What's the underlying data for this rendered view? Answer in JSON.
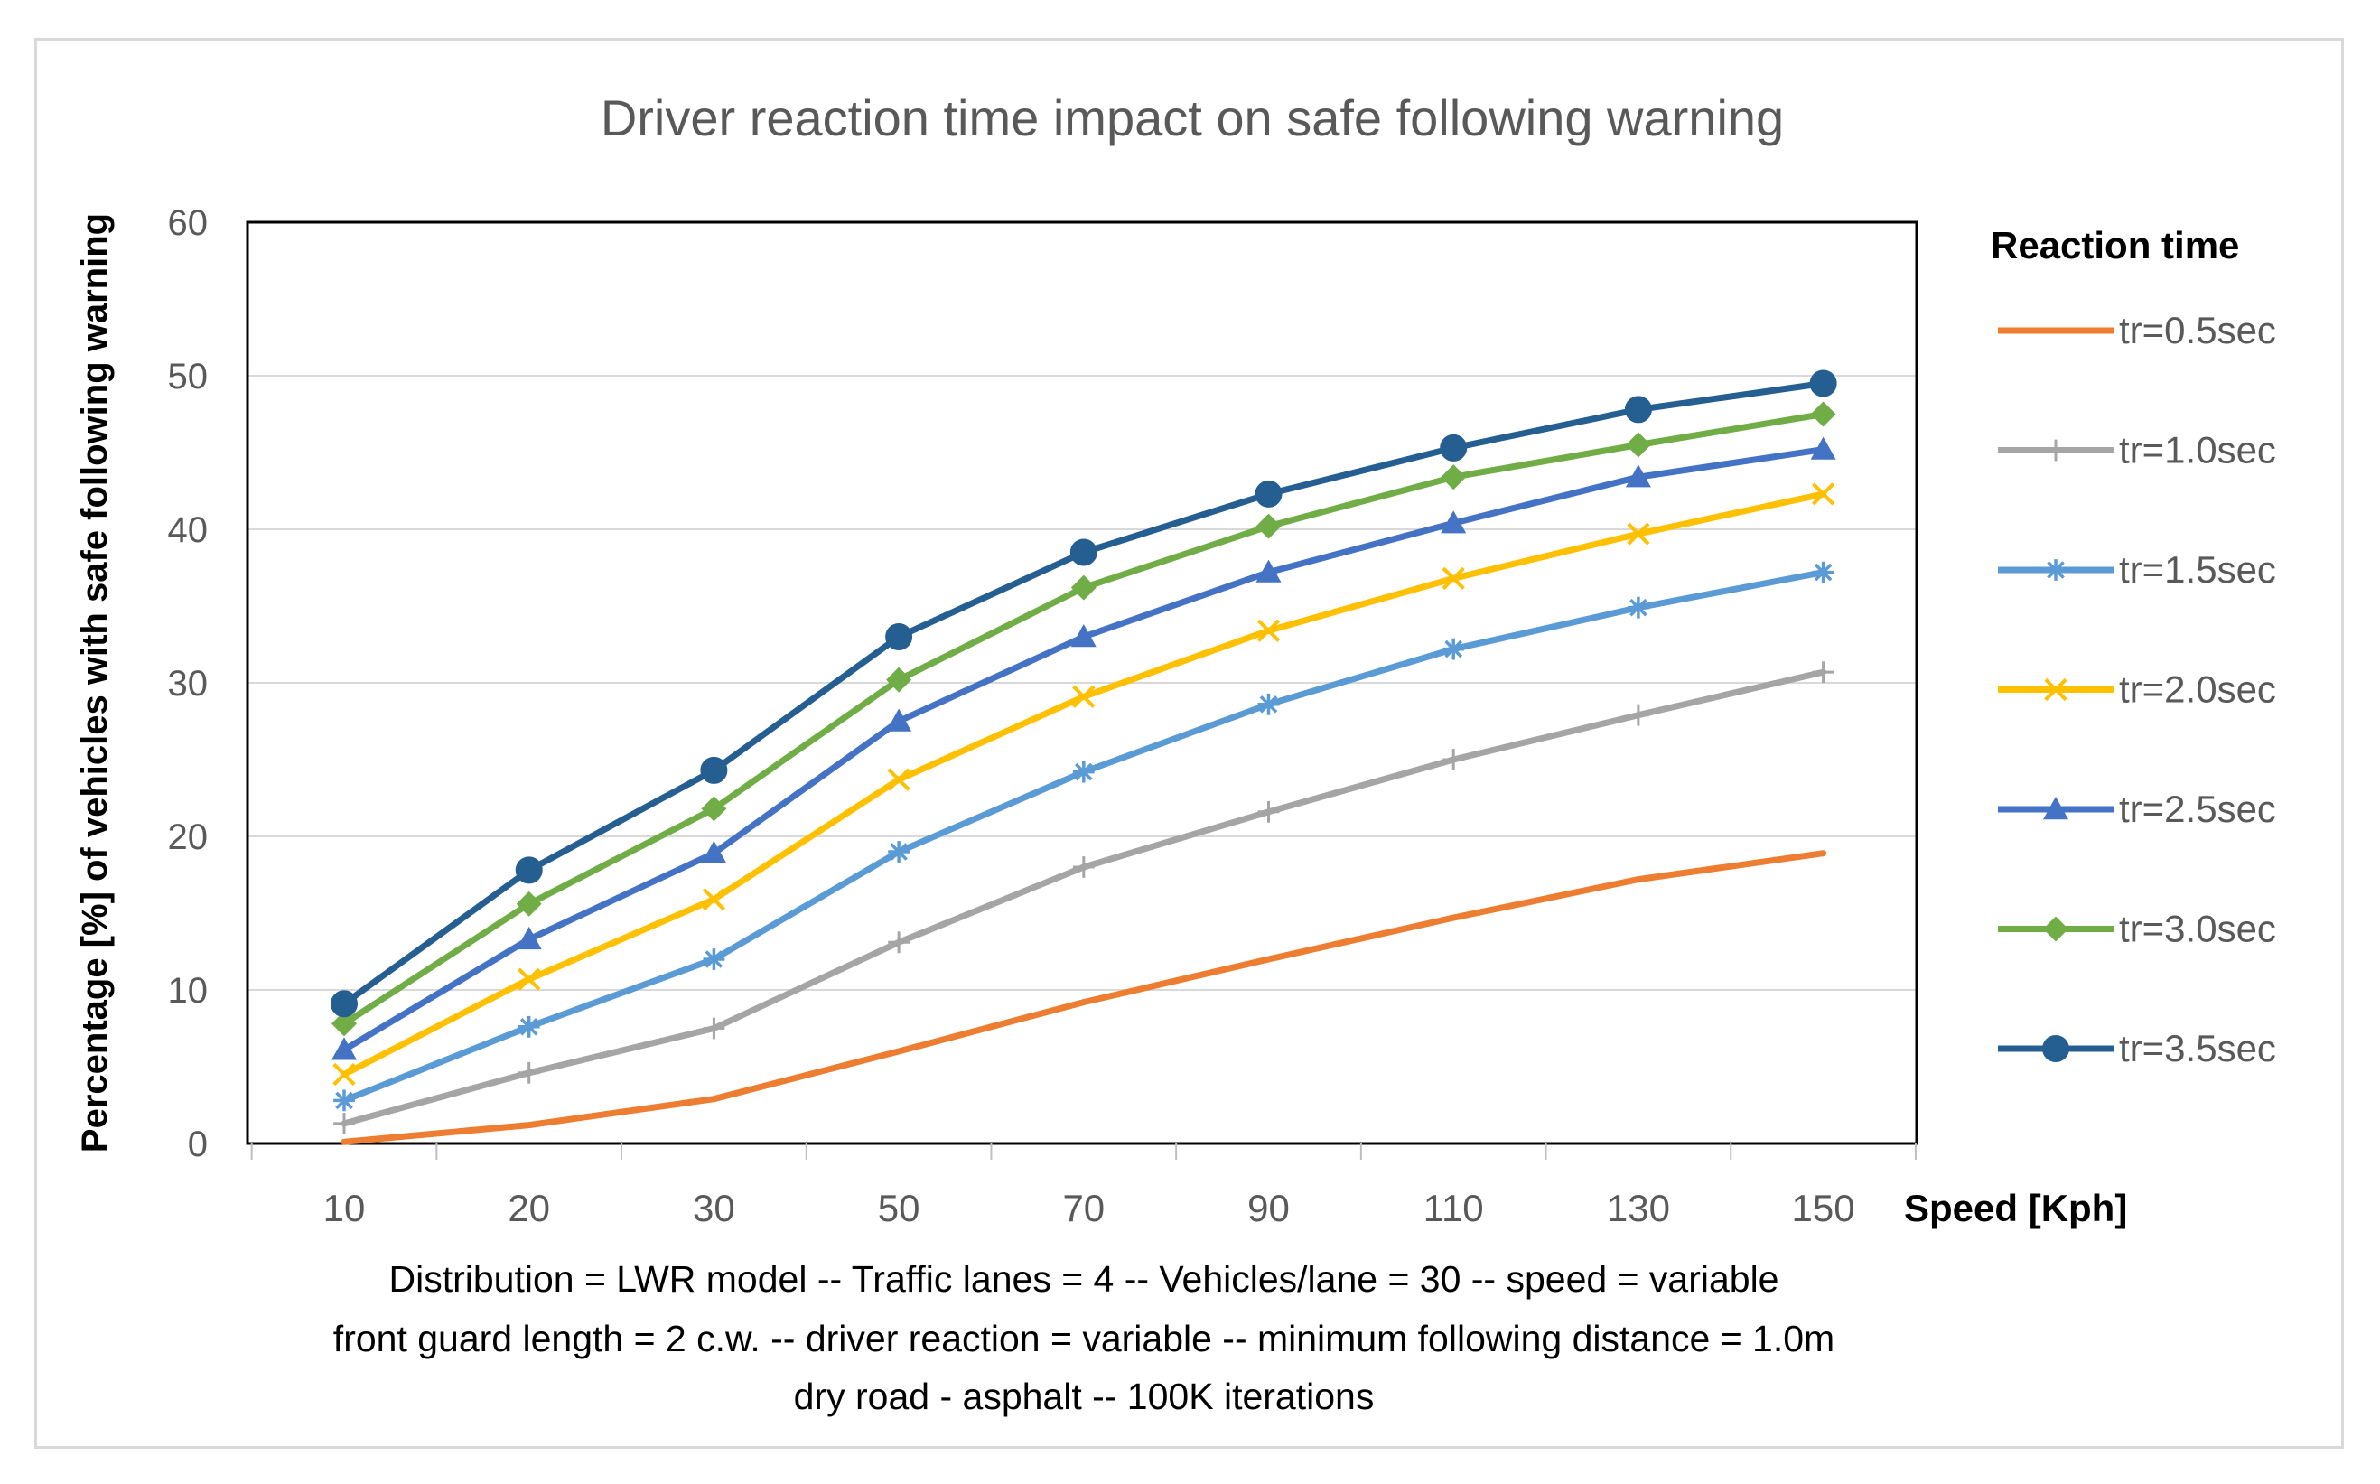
{
  "chart_data": {
    "type": "line",
    "title": "Driver reaction time impact on safe following warning",
    "xlabel": "Speed [Kph]",
    "ylabel": "Percentage [%] of vehicles with safe following warning",
    "categories": [
      "10",
      "20",
      "30",
      "50",
      "70",
      "90",
      "110",
      "130",
      "150"
    ],
    "ylim": [
      0,
      60
    ],
    "yticks": [
      "0",
      "10",
      "20",
      "30",
      "40",
      "50",
      "60"
    ],
    "grid": true,
    "legend_title": "Reaction time",
    "legend_position": "right",
    "series": [
      {
        "name": "tr=0.5sec",
        "color": "#ED7D31",
        "marker": "none",
        "values": [
          0.1,
          1.2,
          2.9,
          6.0,
          9.2,
          12.0,
          14.7,
          17.2,
          18.9
        ]
      },
      {
        "name": "tr=1.0sec",
        "color": "#A5A5A5",
        "marker": "plus",
        "values": [
          1.3,
          4.6,
          7.5,
          13.1,
          18.0,
          21.6,
          25.0,
          27.9,
          30.7
        ]
      },
      {
        "name": "tr=1.5sec",
        "color": "#5B9BD5",
        "marker": "asterisk",
        "values": [
          2.8,
          7.6,
          12.0,
          19.0,
          24.2,
          28.6,
          32.2,
          34.9,
          37.2
        ]
      },
      {
        "name": "tr=2.0sec",
        "color": "#FFC000",
        "marker": "x",
        "values": [
          4.5,
          10.7,
          15.9,
          23.7,
          29.1,
          33.4,
          36.8,
          39.7,
          42.3
        ]
      },
      {
        "name": "tr=2.5sec",
        "color": "#4472C4",
        "marker": "triangle",
        "values": [
          6.1,
          13.3,
          18.9,
          27.5,
          33.0,
          37.2,
          40.4,
          43.4,
          45.2
        ]
      },
      {
        "name": "tr=3.0sec",
        "color": "#70AD47",
        "marker": "diamond",
        "values": [
          7.8,
          15.6,
          21.8,
          30.2,
          36.2,
          40.2,
          43.4,
          45.5,
          47.5
        ]
      },
      {
        "name": "tr=3.5sec",
        "color": "#255E91",
        "marker": "circle",
        "values": [
          9.1,
          17.8,
          24.3,
          33.0,
          38.5,
          42.3,
          45.3,
          47.8,
          49.5
        ]
      }
    ],
    "annotations": [
      "Distribution = LWR model -- Traffic lanes = 4 -- Vehicles/lane = 30 -- speed = variable",
      "front guard length = 2 c.w. -- driver reaction = variable -- minimum following distance = 1.0m",
      "dry road - asphalt -- 100K iterations"
    ]
  }
}
